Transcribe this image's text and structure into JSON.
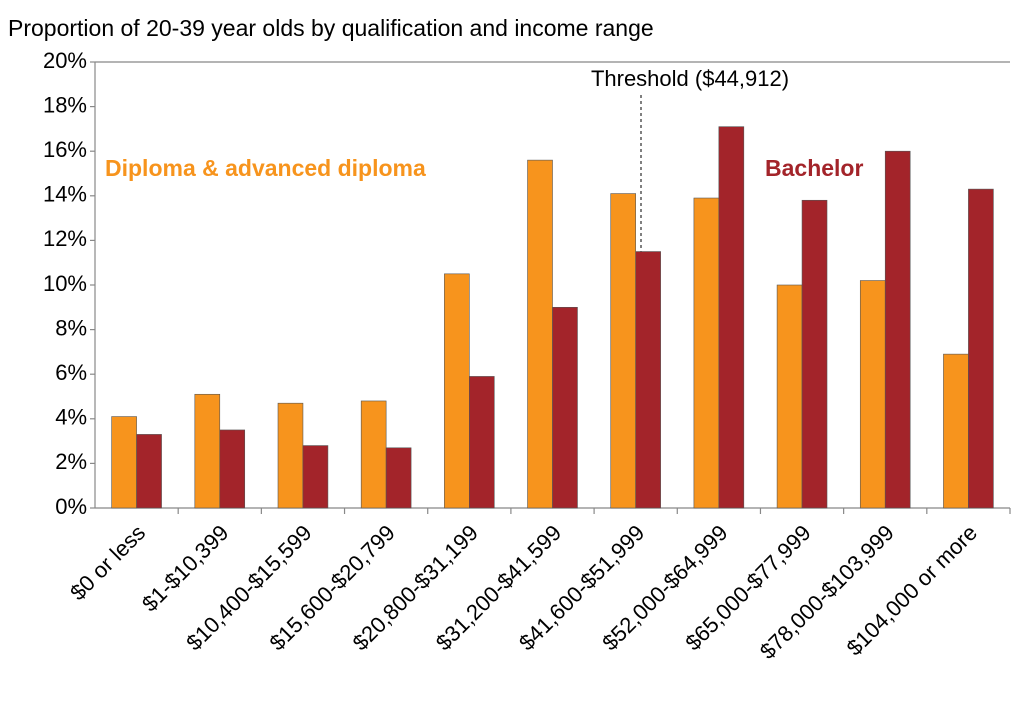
{
  "chart_data": {
    "type": "bar",
    "title": "Proportion of 20-39 year olds by qualification and income range",
    "categories": [
      "$0 or less",
      "$1-$10,399",
      "$10,400-$15,599",
      "$15,600-$20,799",
      "$20,800-$31,199",
      "$31,200-$41,599",
      "$41,600-$51,999",
      "$52,000-$64,999",
      "$65,000-$77,999",
      "$78,000-$103,999",
      "$104,000 or more"
    ],
    "series": [
      {
        "name": "Diploma & advanced diploma",
        "color": "#f7941d",
        "values": [
          4.1,
          5.1,
          4.7,
          4.8,
          10.5,
          15.6,
          14.1,
          13.9,
          10.0,
          10.2,
          6.9
        ]
      },
      {
        "name": "Bachelor",
        "color": "#a3242a",
        "values": [
          3.3,
          3.5,
          2.8,
          2.7,
          5.9,
          9.0,
          11.5,
          17.1,
          13.8,
          16.0,
          14.3
        ]
      }
    ],
    "ylim": [
      0,
      20
    ],
    "yticks": [
      {
        "value": 0,
        "label": "0%"
      },
      {
        "value": 2,
        "label": "2%"
      },
      {
        "value": 4,
        "label": "4%"
      },
      {
        "value": 6,
        "label": "6%"
      },
      {
        "value": 8,
        "label": "8%"
      },
      {
        "value": 10,
        "label": "10%"
      },
      {
        "value": 12,
        "label": "12%"
      },
      {
        "value": 14,
        "label": "14%"
      },
      {
        "value": 16,
        "label": "16%"
      },
      {
        "value": 18,
        "label": "18%"
      },
      {
        "value": 20,
        "label": "20%"
      }
    ],
    "annotation": "Threshold ($44,912)",
    "grid": false
  }
}
